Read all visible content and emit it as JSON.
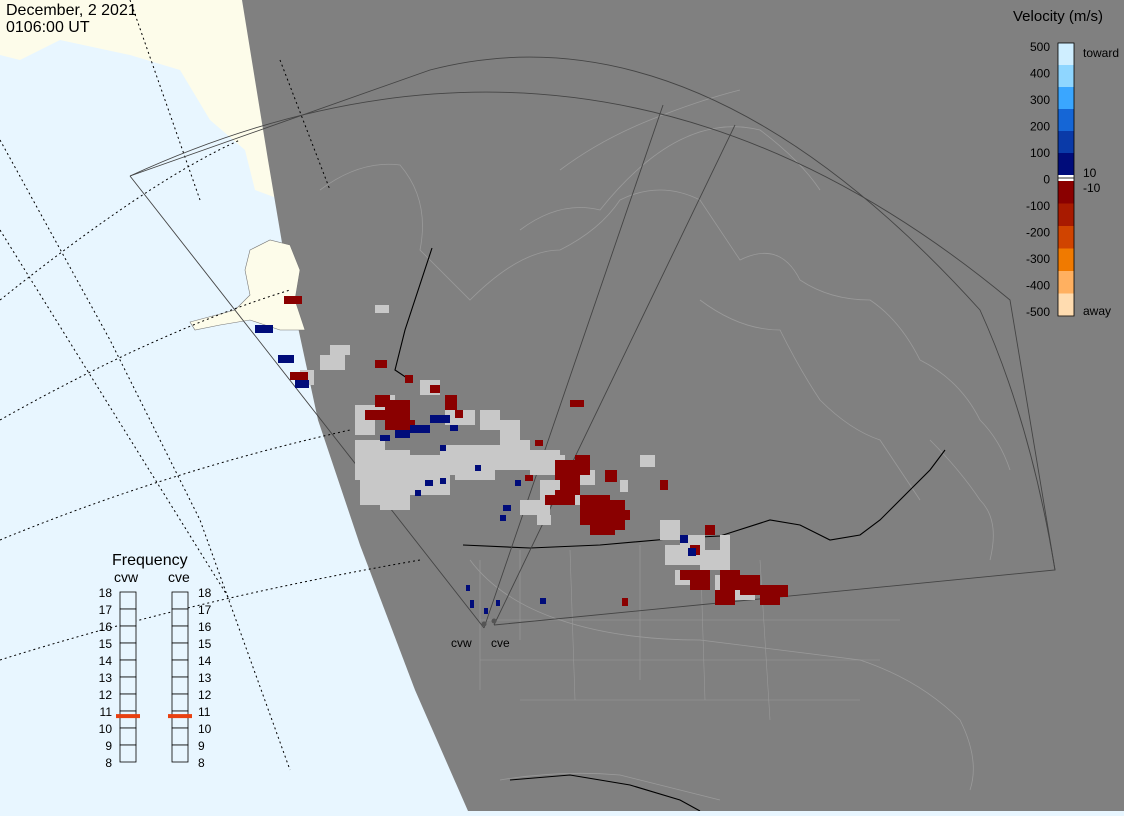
{
  "header": {
    "date": "December, 2 2021",
    "time": "0106:00 UT"
  },
  "legend": {
    "title": "Velocity (m/s)",
    "toward_label": "toward",
    "away_label": "away",
    "ticks": [
      "500",
      "400",
      "300",
      "200",
      "100",
      "0",
      "-100",
      "-200",
      "-300",
      "-400",
      "-500"
    ],
    "threshold_pos": "10",
    "threshold_neg": "-10",
    "colors": [
      "#cfeeff",
      "#8fd6ff",
      "#3aa6ff",
      "#1566d6",
      "#0a3aa8",
      "#000c7a",
      "#8a0000",
      "#a81a00",
      "#d04400",
      "#f07a00",
      "#ffb060",
      "#ffdcb0"
    ]
  },
  "frequency": {
    "title": "Frequency",
    "left_radar": "cvw",
    "right_radar": "cve",
    "scale": [
      "18",
      "17",
      "16",
      "15",
      "14",
      "13",
      "12",
      "11",
      "10",
      "9",
      "8"
    ],
    "left_value_mhz": 10.7,
    "right_value_mhz": 10.7,
    "marker_color": "#e84010"
  },
  "radars": {
    "west_label": "cvw",
    "east_label": "cve"
  },
  "colors": {
    "ocean": "#e8f6ff",
    "night": "#808080",
    "land_day": "#fdfcea",
    "ground_scatter": "#c8c8c8",
    "positive_velocity": "#8a0000",
    "negative_velocity": "#000c7a"
  }
}
